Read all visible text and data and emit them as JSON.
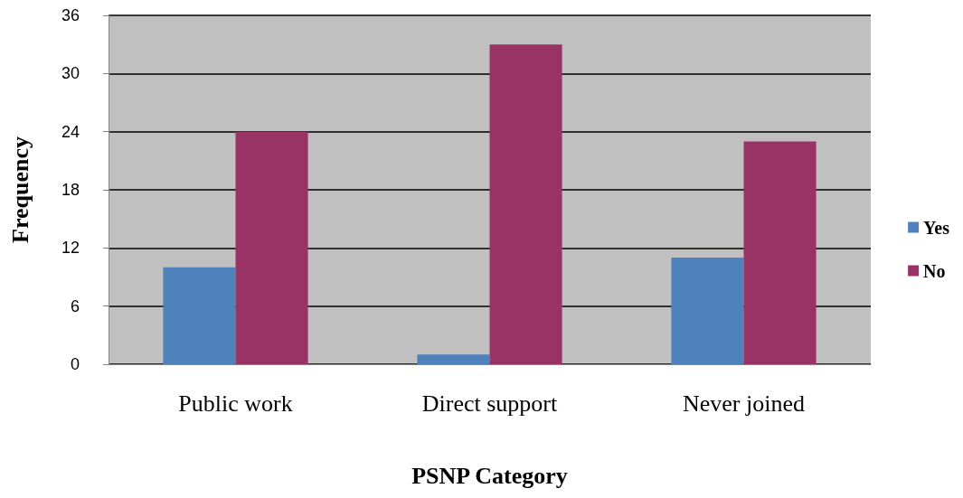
{
  "chart_data": {
    "type": "bar",
    "xlabel": "PSNP Category",
    "ylabel": "Frequency",
    "categories": [
      "Public work",
      "Direct support",
      "Never joined"
    ],
    "series": [
      {
        "name": "Yes",
        "color": "#4f81bd",
        "values": [
          10,
          1,
          11
        ]
      },
      {
        "name": "No",
        "color": "#993366",
        "values": [
          24,
          33,
          23
        ]
      }
    ],
    "ylim": [
      0,
      36
    ],
    "yticks": [
      0,
      6,
      12,
      18,
      24,
      30,
      36
    ],
    "grid": "y",
    "legend": "right"
  }
}
